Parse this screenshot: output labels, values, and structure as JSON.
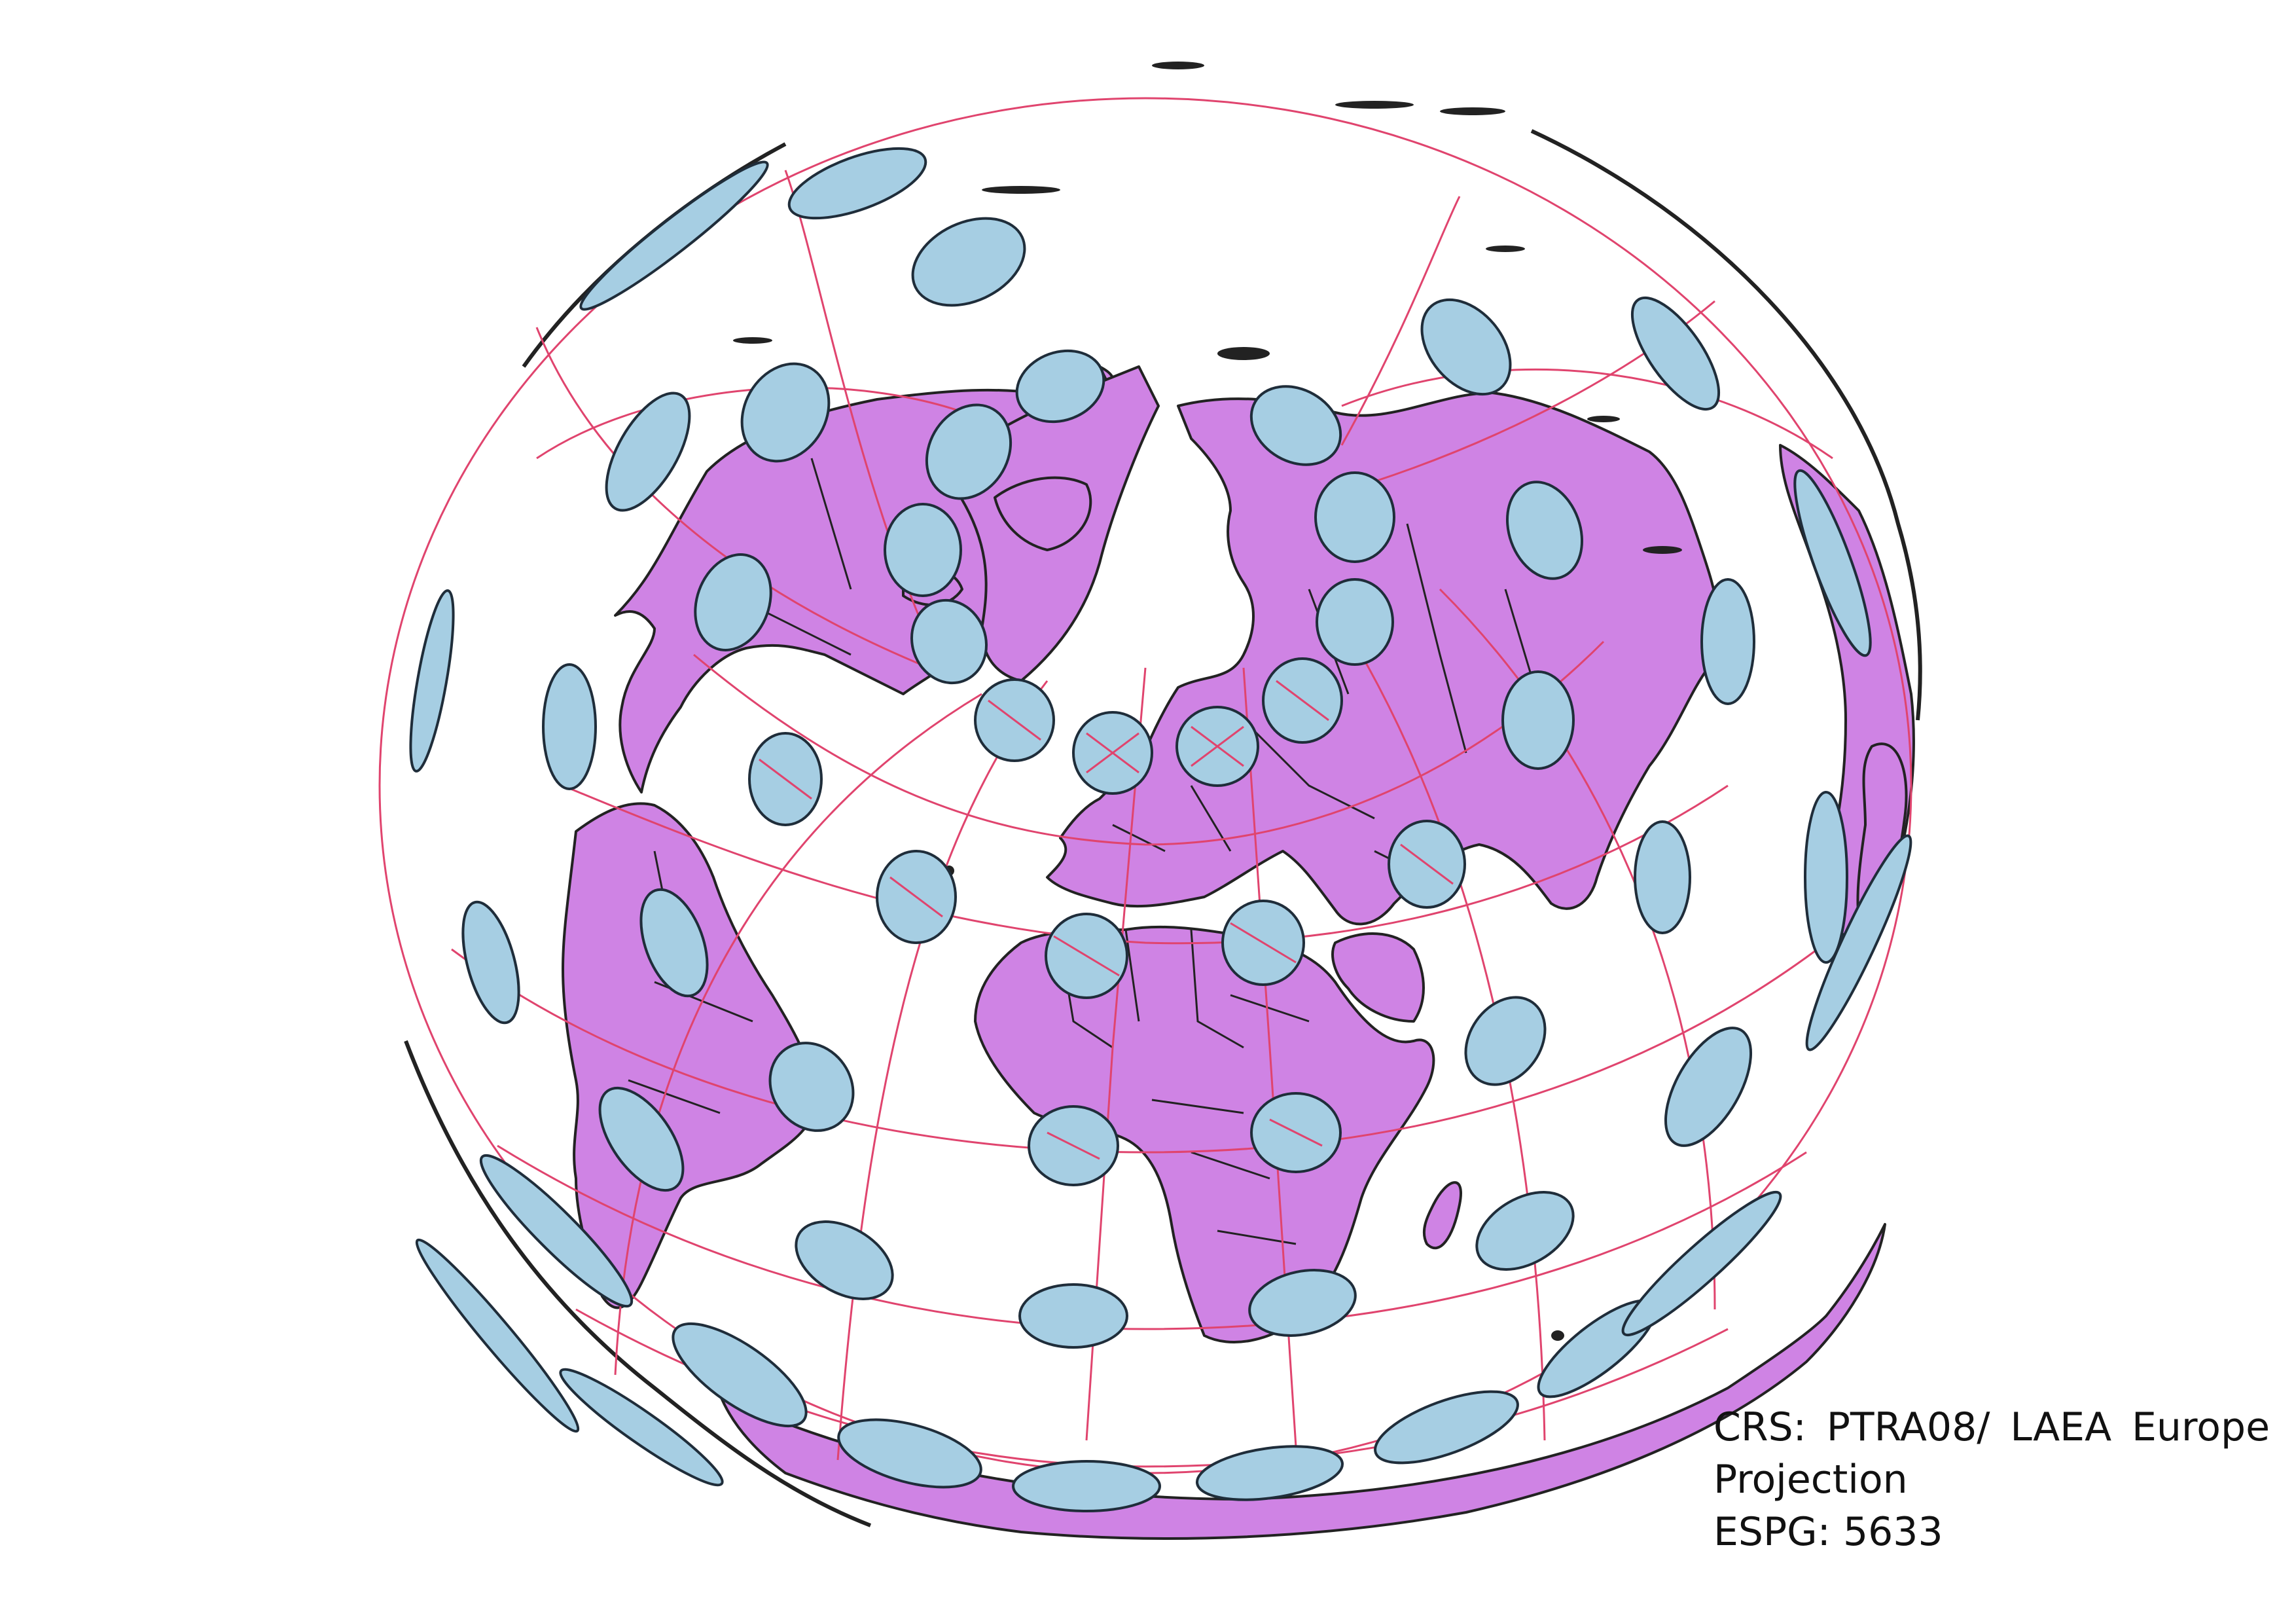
{
  "caption": {
    "line1": "CRS: PTRA08/ LAEA Europe",
    "line2": "Projection",
    "line3": "ESPG: 5633"
  },
  "colors": {
    "land": "#cf83e4",
    "land_outline": "#222222",
    "graticule": "#e0446e",
    "ellipse_fill": "#a6cee3",
    "ellipse_outline": "#1f2d3a"
  },
  "map_features": [
    "land",
    "country-borders",
    "graticule",
    "tissot-indicatrices"
  ]
}
